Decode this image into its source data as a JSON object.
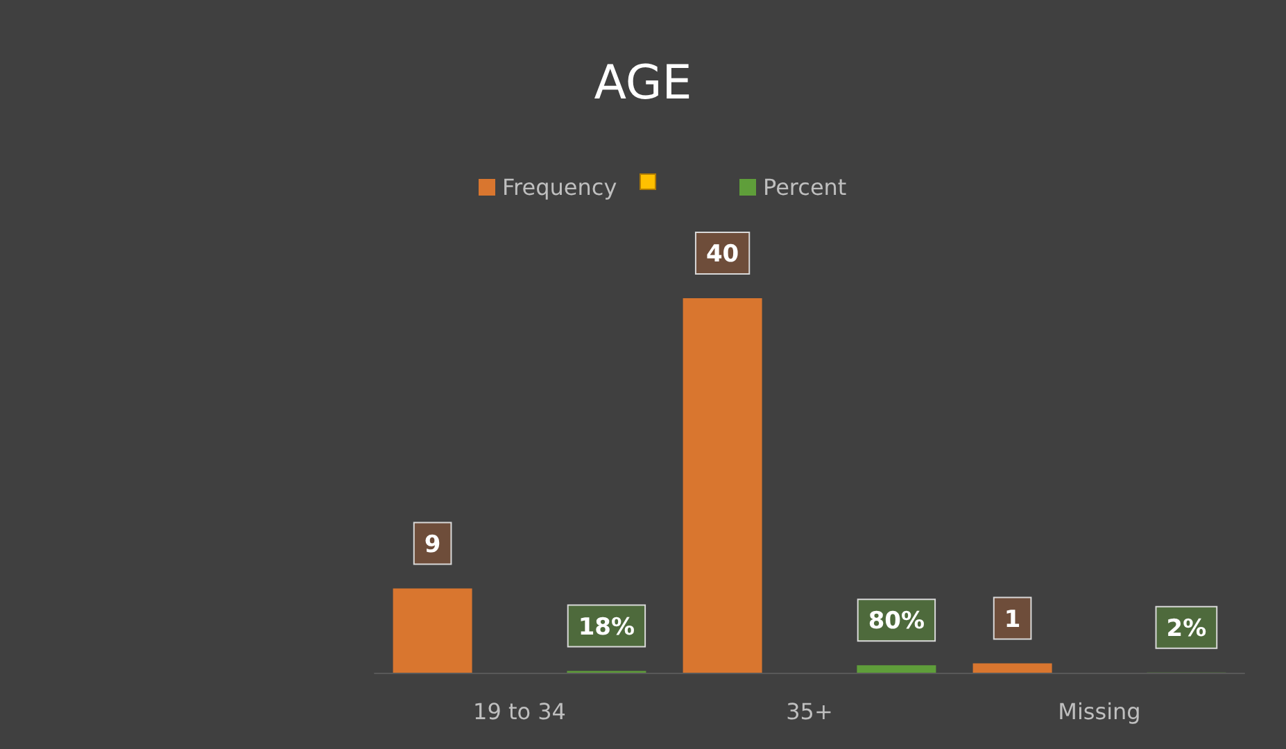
{
  "chart_data": {
    "type": "bar",
    "title": "AGE",
    "categories": [
      "19 to 34",
      "35+",
      "Missing"
    ],
    "series": [
      {
        "name": "Frequency",
        "color": "#d9762f",
        "values": [
          9,
          40,
          1
        ],
        "value_labels": [
          "9",
          "40",
          "1"
        ]
      },
      {
        "color": "#ffc000",
        "values": [
          null,
          null,
          null
        ]
      },
      {
        "name": "Percent",
        "color": "#5f9e3a",
        "values": [
          0.18,
          0.8,
          0.02
        ],
        "value_labels": [
          "18%",
          "80%",
          "2%"
        ]
      }
    ],
    "legend": "top"
  }
}
